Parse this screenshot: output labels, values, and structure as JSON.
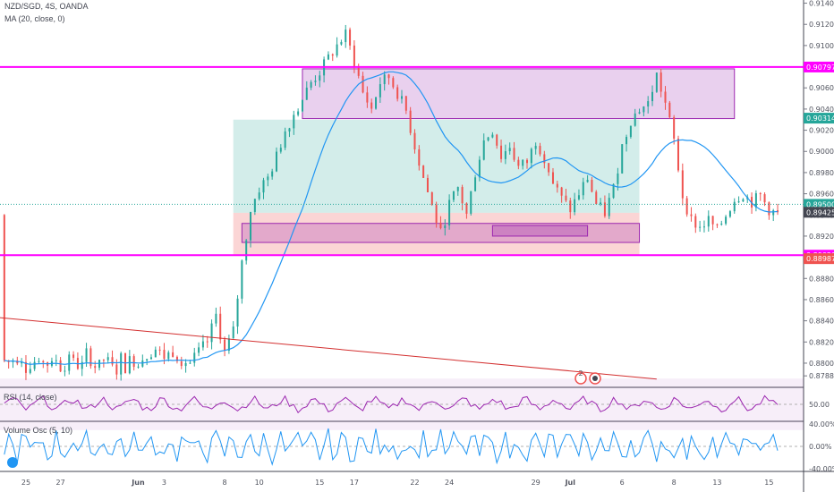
{
  "header": {
    "symbol_line": "NZD/SGD, 4S, OANDA",
    "ma_label": "MA (20, close, 0)",
    "rsi_label": "RSI (14, close)",
    "vol_label": "Volume Osc (5, 10)"
  },
  "colors": {
    "up": "#26a69a",
    "down": "#ef5350",
    "ma": "#2196f3",
    "magenta": "#ff00ff",
    "purple_box": "#9c27b0",
    "green_zone": "#80cbc4",
    "red_zone": "#f8b3b3",
    "rsi": "#9c27b0",
    "osc": "#2196f3",
    "trend": "#d32f2f"
  },
  "chart_data": [
    {
      "type": "candlestick",
      "title": "NZD/SGD, 4S, OANDA",
      "x_tick_labels": [
        "25",
        "27",
        "Jun",
        "3",
        "8",
        "10",
        "15",
        "17",
        "22",
        "24",
        "29",
        "Jul",
        "6",
        "8",
        "13",
        "15"
      ],
      "y_tick_labels": [
        "0.91400",
        "0.91200",
        "0.91000",
        "0.90800",
        "0.90600",
        "0.90400",
        "0.90200",
        "0.90000",
        "0.89800",
        "0.89600",
        "0.89400",
        "0.89200",
        "0.89000",
        "0.88800",
        "0.88600",
        "0.88400",
        "0.88200",
        "0.88000",
        "0.87880"
      ],
      "ylim": [
        0.8778,
        0.9143
      ],
      "price_path": [
        [
          0,
          0.8802
        ],
        [
          1,
          0.8808
        ],
        [
          2,
          0.8813
        ],
        [
          3,
          0.8806
        ],
        [
          4,
          0.8811
        ],
        [
          5,
          0.8803
        ],
        [
          6,
          0.88
        ],
        [
          8,
          0.882
        ],
        [
          9,
          0.8845
        ],
        [
          10,
          0.881
        ],
        [
          11,
          0.883
        ],
        [
          12,
          0.8895
        ],
        [
          13,
          0.8945
        ],
        [
          14,
          0.8965
        ],
        [
          15,
          0.8975
        ],
        [
          16,
          0.8995
        ],
        [
          17,
          0.902
        ],
        [
          18,
          0.9035
        ],
        [
          19,
          0.905
        ],
        [
          20,
          0.9065
        ],
        [
          21,
          0.9075
        ],
        [
          22,
          0.9088
        ],
        [
          23,
          0.91
        ],
        [
          24,
          0.911
        ],
        [
          25,
          0.9085
        ],
        [
          26,
          0.9055
        ],
        [
          27,
          0.904
        ],
        [
          28,
          0.9065
        ],
        [
          29,
          0.907
        ],
        [
          30,
          0.9055
        ],
        [
          31,
          0.9038
        ],
        [
          32,
          0.9005
        ],
        [
          33,
          0.8975
        ],
        [
          34,
          0.8948
        ],
        [
          35,
          0.8922
        ],
        [
          36,
          0.895
        ],
        [
          37,
          0.8965
        ],
        [
          38,
          0.894
        ],
        [
          39,
          0.898
        ],
        [
          40,
          0.901
        ],
        [
          41,
          0.902
        ],
        [
          42,
          0.8995
        ],
        [
          43,
          0.9005
        ],
        [
          44,
          0.8985
        ],
        [
          45,
          0.899
        ],
        [
          46,
          0.901
        ],
        [
          47,
          0.8995
        ],
        [
          48,
          0.897
        ],
        [
          49,
          0.8955
        ],
        [
          50,
          0.8945
        ],
        [
          51,
          0.896
        ],
        [
          52,
          0.8975
        ],
        [
          53,
          0.895
        ],
        [
          54,
          0.8942
        ],
        [
          55,
          0.8965
        ],
        [
          56,
          0.9005
        ],
        [
          57,
          0.903
        ],
        [
          58,
          0.904
        ],
        [
          59,
          0.9045
        ],
        [
          60,
          0.9072
        ],
        [
          61,
          0.9045
        ],
        [
          62,
          0.901
        ],
        [
          63,
          0.8958
        ],
        [
          64,
          0.8935
        ],
        [
          65,
          0.8928
        ],
        [
          66,
          0.8935
        ],
        [
          67,
          0.8925
        ],
        [
          68,
          0.894
        ],
        [
          69,
          0.8955
        ],
        [
          70,
          0.896
        ],
        [
          71,
          0.8952
        ],
        [
          72,
          0.8958
        ],
        [
          73,
          0.8945
        ],
        [
          74,
          0.894
        ]
      ],
      "last_index": 74,
      "x_ticks": [
        {
          "label": "25",
          "index": -13
        },
        {
          "label": "27",
          "index": -9
        },
        {
          "label": "Jun",
          "index": 0
        },
        {
          "label": "3",
          "index": 3
        },
        {
          "label": "8",
          "index": 10
        },
        {
          "label": "10",
          "index": 14
        },
        {
          "label": "15",
          "index": 21
        },
        {
          "label": "17",
          "index": 25
        },
        {
          "label": "22",
          "index": 32
        },
        {
          "label": "24",
          "index": 36
        },
        {
          "label": "29",
          "index": 46
        },
        {
          "label": "Jul",
          "index": 50
        },
        {
          "label": "6",
          "index": 56
        },
        {
          "label": "8",
          "index": 62
        },
        {
          "label": "13",
          "index": 67
        },
        {
          "label": "15",
          "index": 73
        }
      ],
      "index_range": [
        -16,
        77
      ],
      "horizontal_lines": [
        0.90797,
        0.8902
      ],
      "current_price": 0.895,
      "price_tags": [
        {
          "label": "0.90797",
          "color": "#ff00ff"
        },
        {
          "label": "0.90314",
          "color": "#26a69a"
        },
        {
          "label": "0.89500",
          "color": "#26a69a"
        },
        {
          "label": "0.89425",
          "color": "#434651"
        },
        {
          "label": "0.89020",
          "color": "#ff00ff"
        },
        {
          "label": "0.88987",
          "color": "#ef5350"
        }
      ],
      "zones": [
        {
          "kind": "target",
          "from": 0.903,
          "to": 0.8942
        },
        {
          "kind": "stop",
          "from": 0.8942,
          "to": 0.8902
        },
        {
          "kind": "box",
          "from": 0.9078,
          "to": 0.9031
        },
        {
          "kind": "box",
          "from": 0.8932,
          "to": 0.8914
        },
        {
          "kind": "box",
          "from": 0.893,
          "to": 0.892
        }
      ],
      "trendline": [
        [
          0.8843
        ],
        [
          0.8785
        ]
      ]
    },
    {
      "type": "line",
      "title": "RSI (14, close)",
      "ylim": [
        30,
        70
      ],
      "y_tick_labels": [
        "50.00"
      ],
      "band": [
        70,
        30
      ],
      "level": 50
    },
    {
      "type": "line",
      "title": "Volume Osc (5, 10)",
      "ylim": [
        -40,
        40
      ],
      "y_tick_labels": [
        "40.00%",
        "0.00%",
        "-40.00%"
      ],
      "zero_line": 0
    }
  ],
  "badges": {
    "count": "2"
  }
}
